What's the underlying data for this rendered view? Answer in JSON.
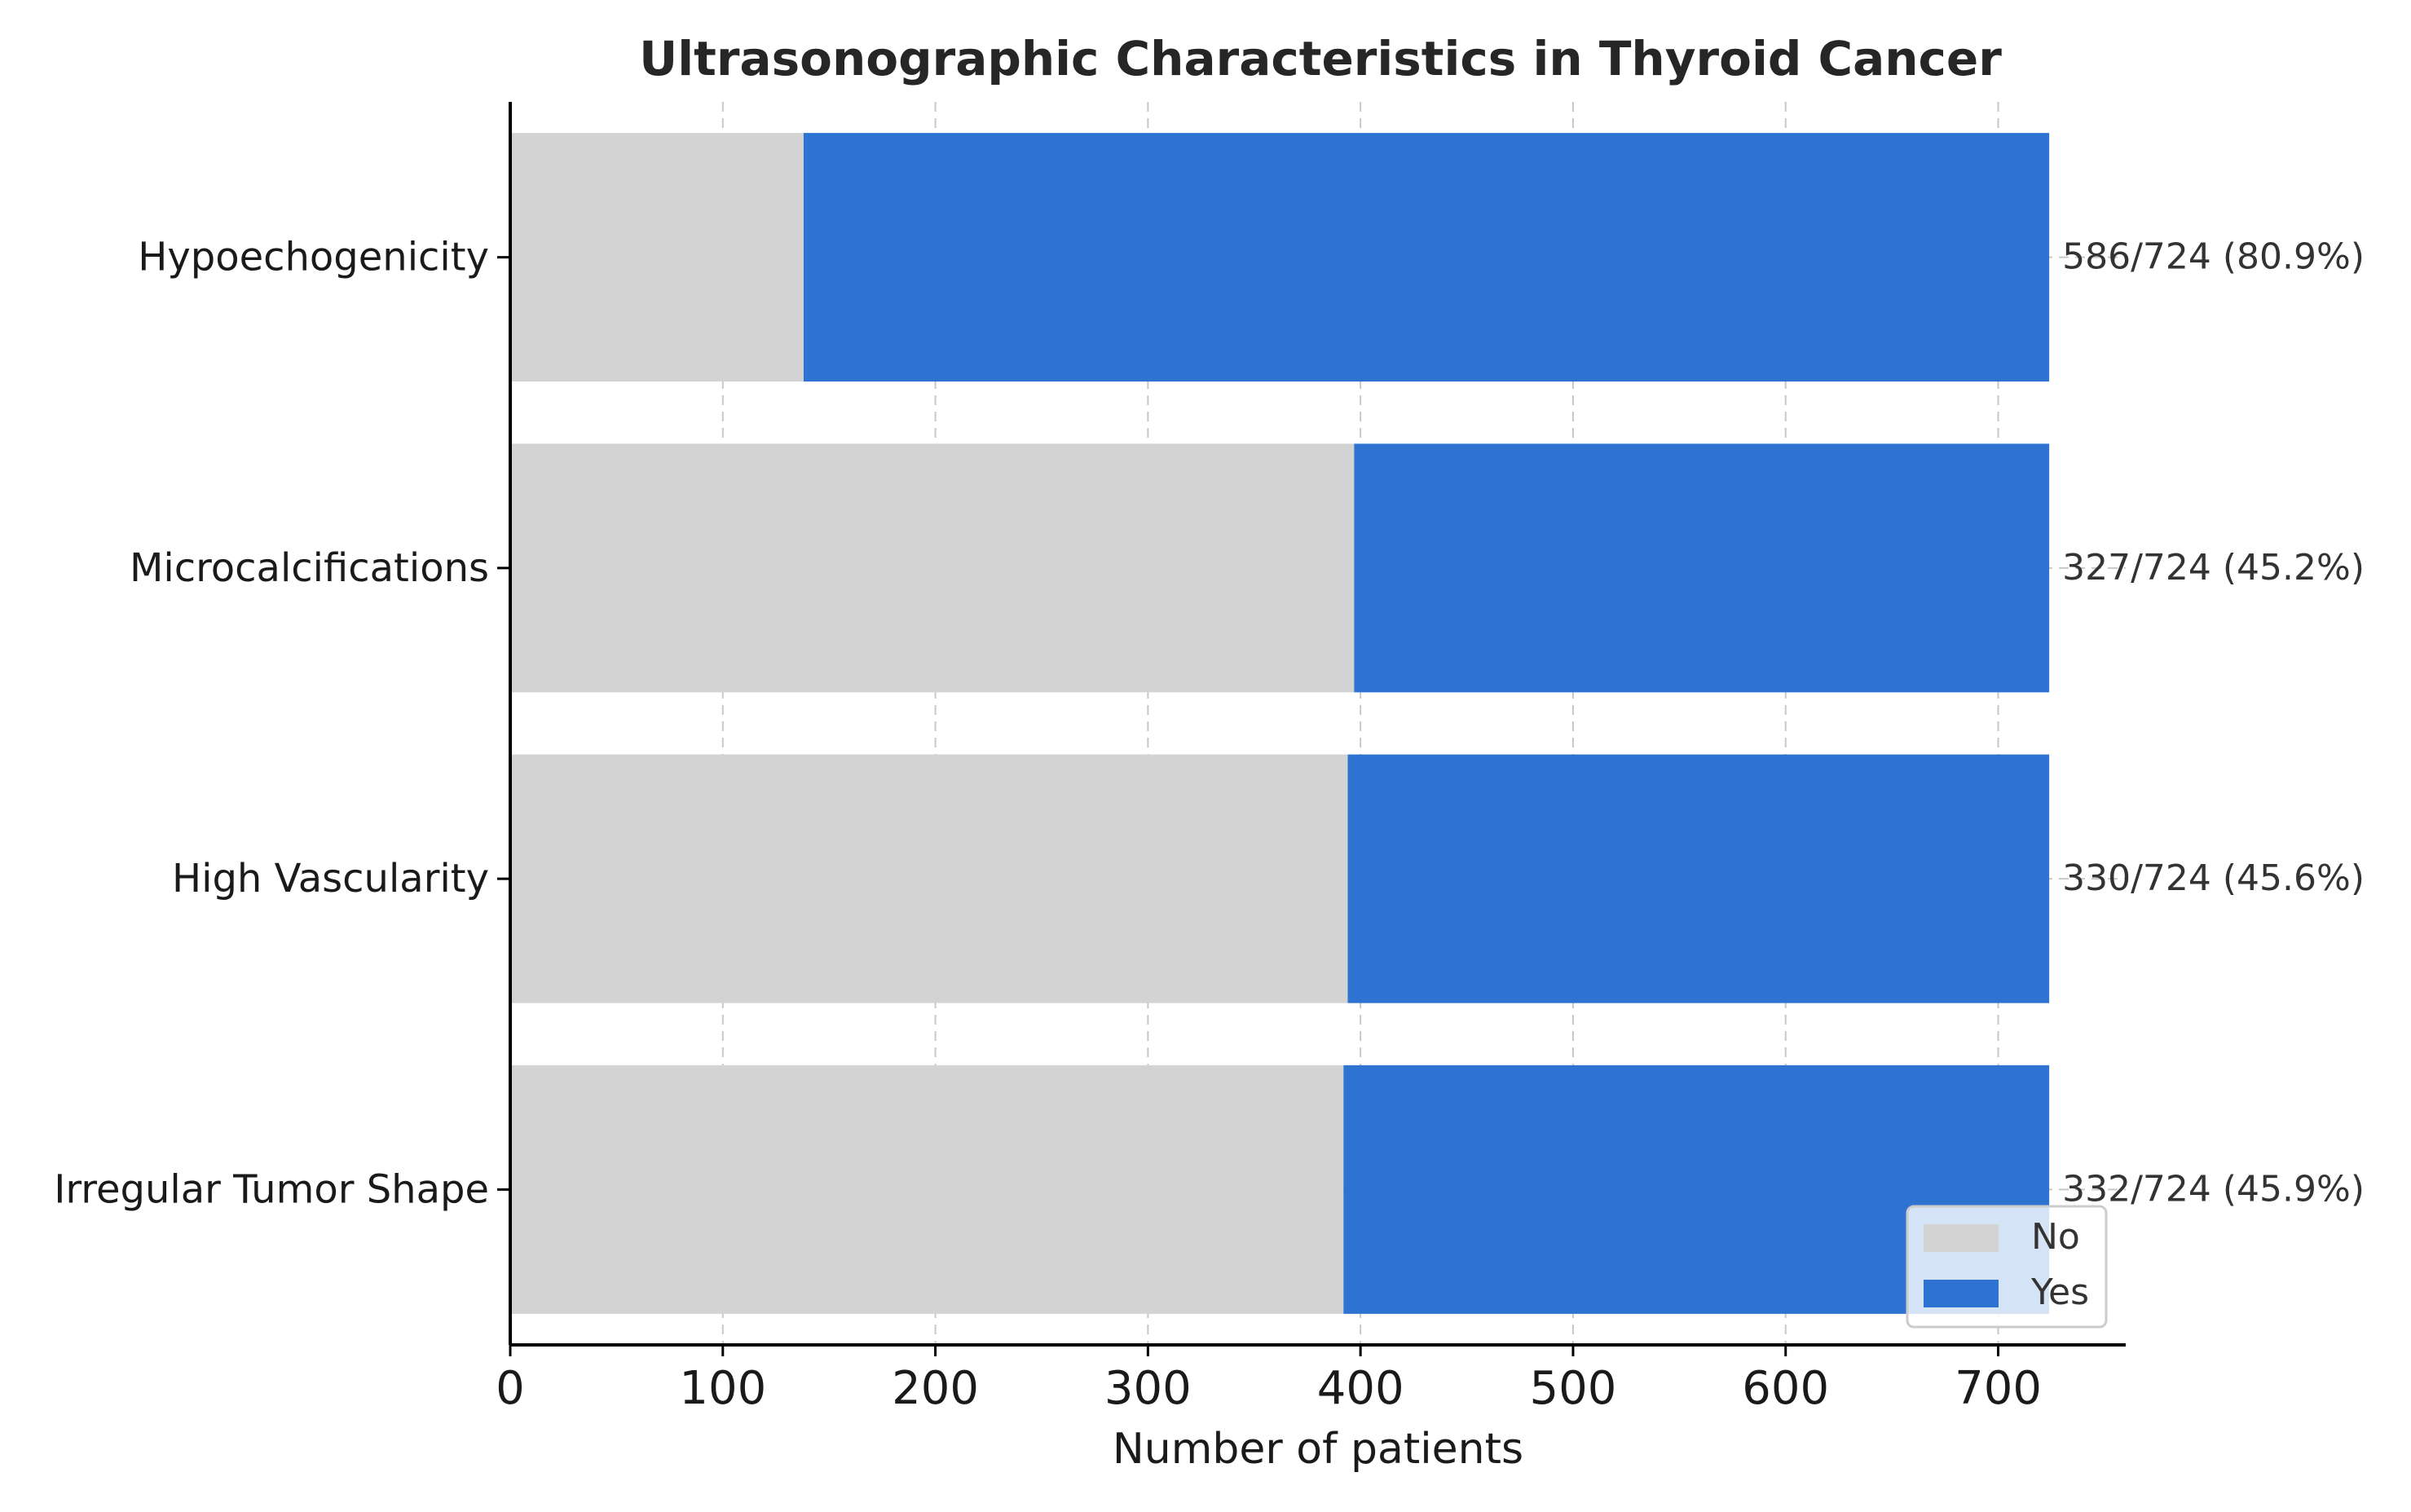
{
  "chart_data": {
    "type": "bar",
    "orientation": "horizontal",
    "stacked": true,
    "title": "Ultrasonographic Characteristics in Thyroid Cancer",
    "xlabel": "Number of patients",
    "ylabel": "",
    "xlim": [
      0,
      760
    ],
    "xticks": [
      0,
      100,
      200,
      300,
      400,
      500,
      600,
      700
    ],
    "grid": true,
    "legend": "bottom-right",
    "categories": [
      "Hypoechogenicity",
      "Microcalcifications",
      "High Vascularity",
      "Irregular Tumor Shape"
    ],
    "series": [
      {
        "name": "No",
        "color": "#d3d3d3",
        "values": [
          138,
          397,
          394,
          392
        ]
      },
      {
        "name": "Yes",
        "color": "#2e73d1",
        "values": [
          586,
          327,
          330,
          332
        ]
      }
    ],
    "data_labels": [
      "586/724 (80.9%)",
      "327/724 (45.2%)",
      "330/724 (45.6%)",
      "332/724 (45.9%)"
    ]
  }
}
